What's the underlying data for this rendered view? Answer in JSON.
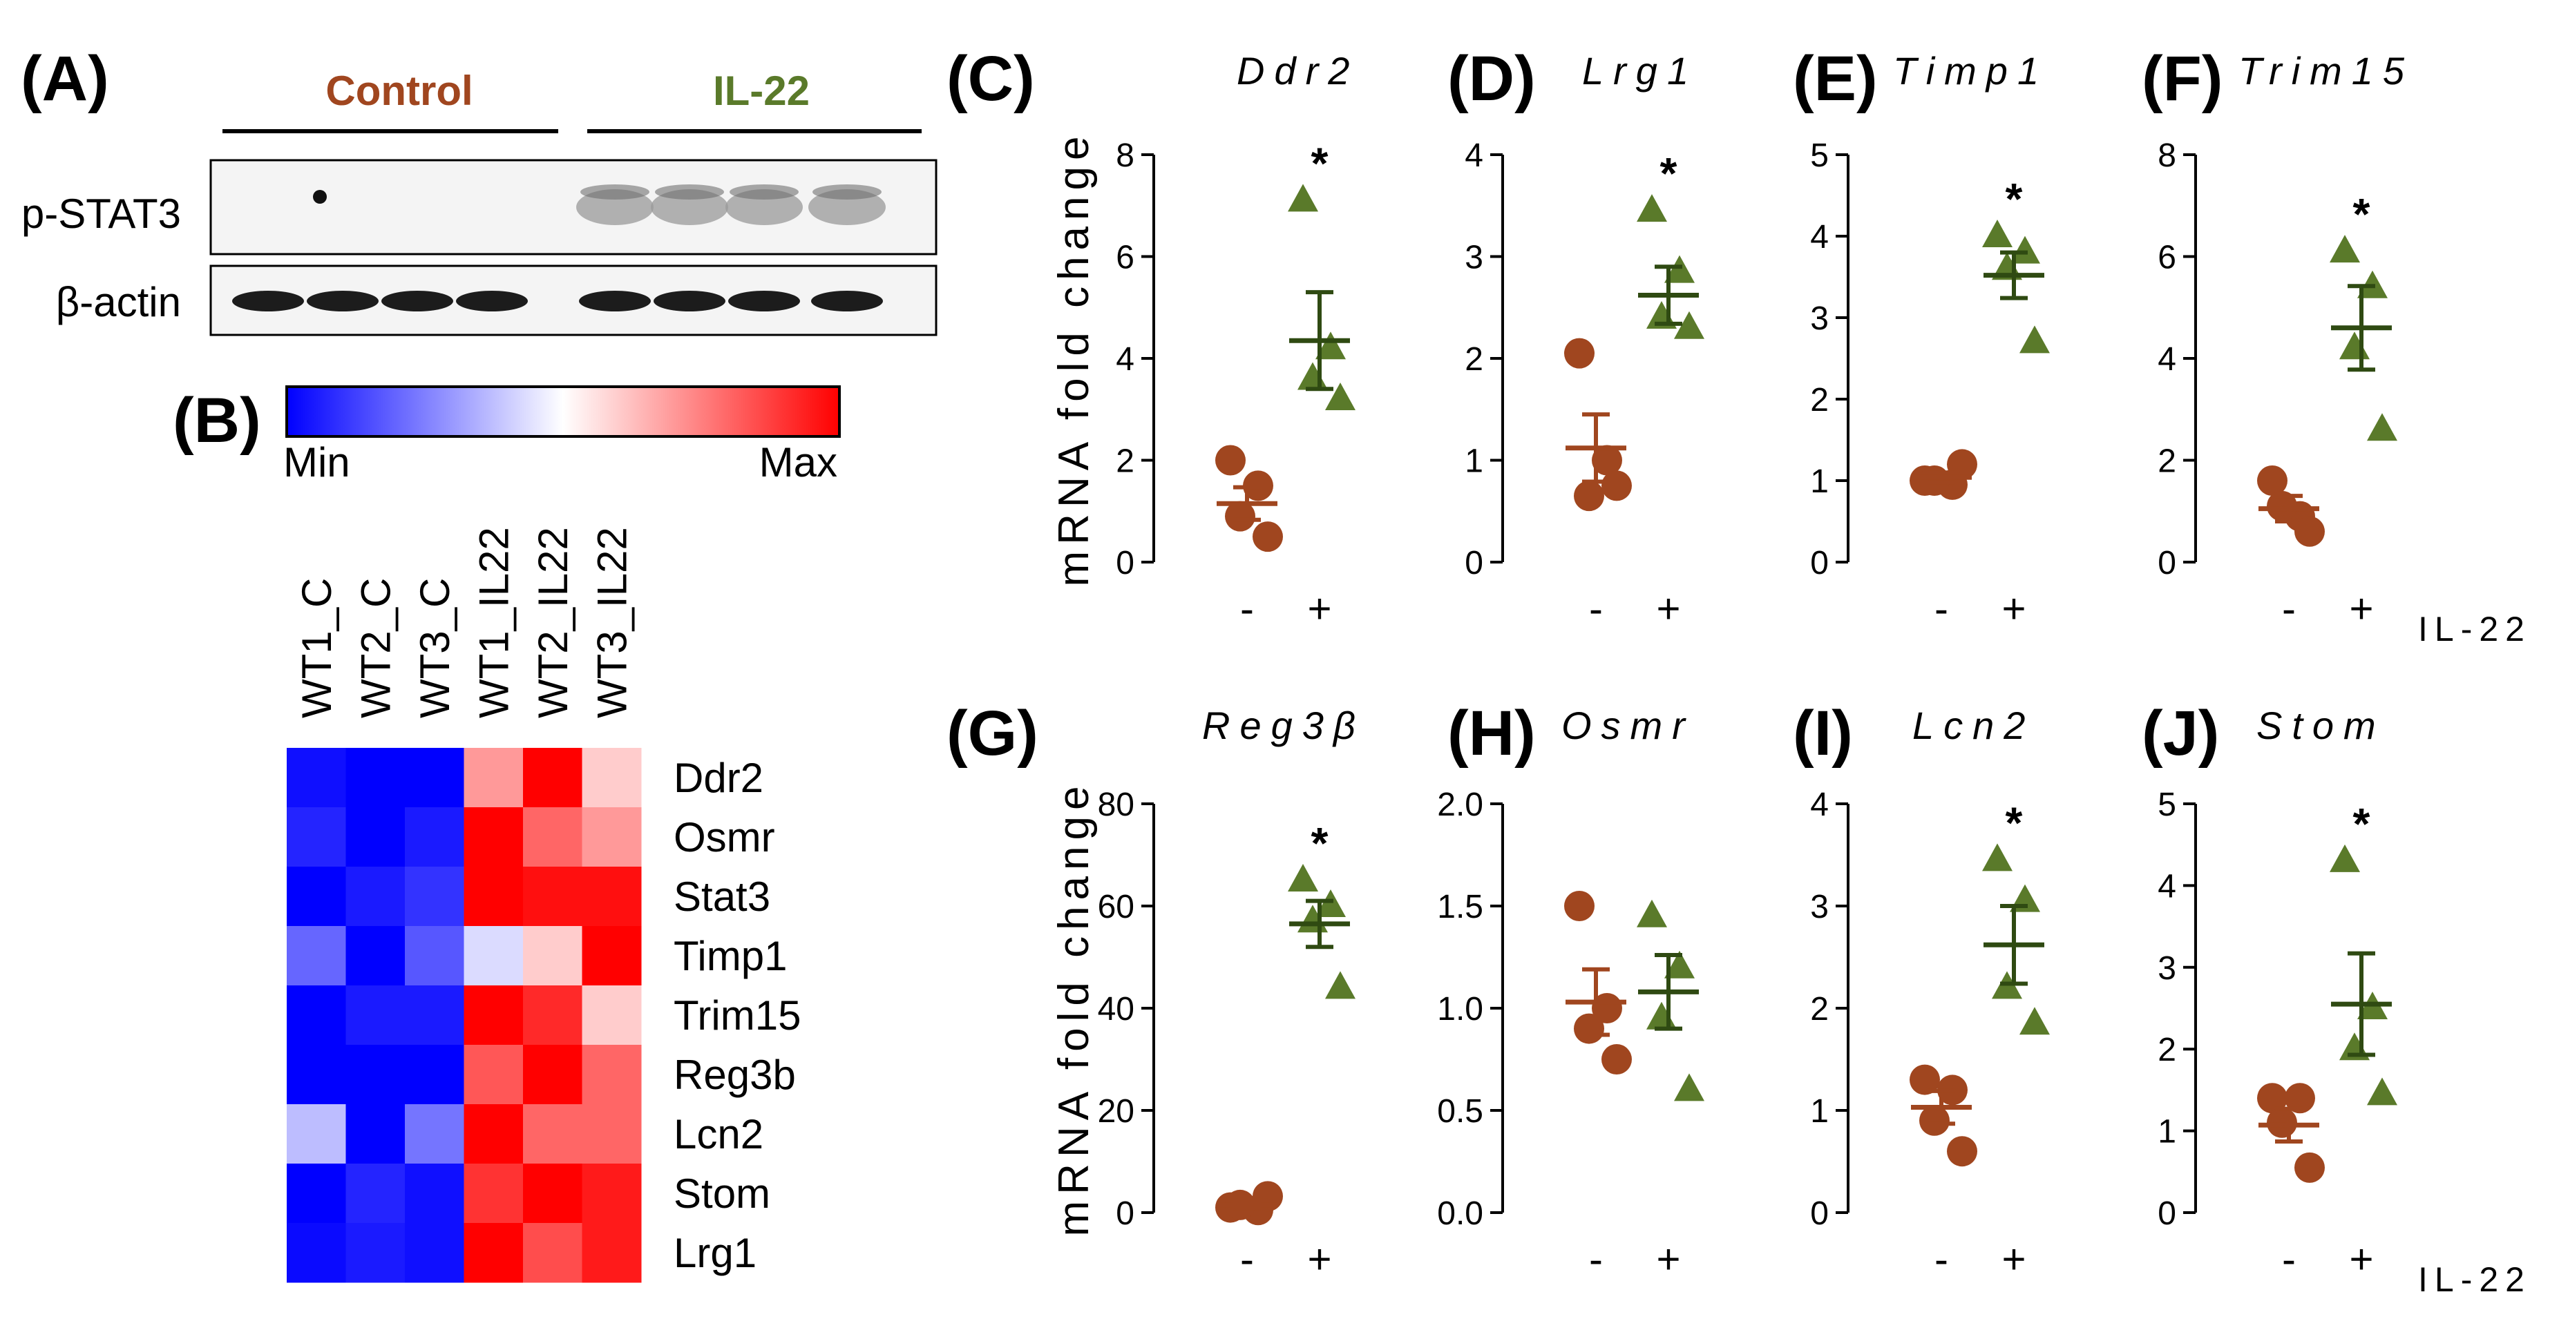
{
  "figure": {
    "label_a": "(A)",
    "label_b": "(B)",
    "western": {
      "groups": [
        "Control",
        "IL-22"
      ],
      "group_colors": [
        "#a0461f",
        "#5a7a2a"
      ],
      "rows": [
        "p-STAT3",
        "β-actin"
      ]
    },
    "heatmap": {
      "legend_min": "Min",
      "legend_max": "Max",
      "colormap": [
        "#0000ff",
        "#ffffff",
        "#ff0000"
      ],
      "columns": [
        "WT1_C",
        "WT2_C",
        "WT3_C",
        "WT1_IL22",
        "WT2_IL22",
        "WT3_IL22"
      ],
      "rows": [
        "Ddr2",
        "Osmr",
        "Stat3",
        "Timp1",
        "Trim15",
        "Reg3b",
        "Lcn2",
        "Stom",
        "Lrg1"
      ],
      "values": [
        [
          0.03,
          0.0,
          0.0,
          0.7,
          1.0,
          0.6
        ],
        [
          0.07,
          0.0,
          0.05,
          1.0,
          0.8,
          0.7
        ],
        [
          0.0,
          0.05,
          0.1,
          1.0,
          0.97,
          0.97
        ],
        [
          0.2,
          0.0,
          0.17,
          0.43,
          0.6,
          1.0
        ],
        [
          0.0,
          0.05,
          0.05,
          1.0,
          0.92,
          0.6
        ],
        [
          0.0,
          0.0,
          0.0,
          0.83,
          1.0,
          0.8
        ],
        [
          0.37,
          0.0,
          0.23,
          1.0,
          0.8,
          0.8
        ],
        [
          0.0,
          0.07,
          0.03,
          0.9,
          1.0,
          0.95
        ],
        [
          0.02,
          0.05,
          0.03,
          1.0,
          0.85,
          0.95
        ]
      ]
    },
    "colors": {
      "control": "#a0461f",
      "il22": "#5a7a2a",
      "il22_line": "#2f4a12"
    },
    "il22_axis_label": "IL-22",
    "significance_mark": "*"
  },
  "chart_data": [
    {
      "type": "scatter",
      "panel": "(C)",
      "title": "Ddr2",
      "ylabel": "mRNA fold change",
      "xlabel": "",
      "categories": [
        "-",
        "+"
      ],
      "ylim": [
        0,
        8
      ],
      "yticks": [
        "0",
        "2",
        "4",
        "6",
        "8"
      ],
      "significant": true,
      "series": [
        {
          "name": "Control",
          "values": [
            2.0,
            1.5,
            0.9,
            0.5
          ],
          "mean": 1.15,
          "sem": 0.32
        },
        {
          "name": "IL-22",
          "values": [
            7.1,
            4.2,
            3.6,
            3.2
          ],
          "mean": 4.35,
          "sem": 0.95
        }
      ]
    },
    {
      "type": "scatter",
      "panel": "(D)",
      "title": "Lrg1",
      "ylabel": "",
      "xlabel": "",
      "categories": [
        "-",
        "+"
      ],
      "ylim": [
        0,
        4
      ],
      "yticks": [
        "0",
        "1",
        "2",
        "3",
        "4"
      ],
      "significant": true,
      "series": [
        {
          "name": "Control",
          "values": [
            2.05,
            1.0,
            0.65,
            0.75
          ],
          "mean": 1.12,
          "sem": 0.33
        },
        {
          "name": "IL-22",
          "values": [
            3.45,
            2.85,
            2.4,
            2.3
          ],
          "mean": 2.62,
          "sem": 0.28
        }
      ]
    },
    {
      "type": "scatter",
      "panel": "(E)",
      "title": "Timp1",
      "ylabel": "",
      "xlabel": "",
      "categories": [
        "-",
        "+"
      ],
      "ylim": [
        0,
        5
      ],
      "yticks": [
        "0",
        "1",
        "2",
        "3",
        "4",
        "5"
      ],
      "significant": true,
      "series": [
        {
          "name": "Control",
          "values": [
            1.0,
            0.95,
            1.0,
            1.2
          ],
          "mean": 1.04,
          "sem": 0.06
        },
        {
          "name": "IL-22",
          "values": [
            4.0,
            3.8,
            3.6,
            2.7
          ],
          "mean": 3.52,
          "sem": 0.28
        }
      ]
    },
    {
      "type": "scatter",
      "panel": "(F)",
      "title": "Trim15",
      "ylabel": "",
      "xlabel": "",
      "categories": [
        "-",
        "+"
      ],
      "ylim": [
        0,
        8
      ],
      "yticks": [
        "0",
        "2",
        "4",
        "6",
        "8"
      ],
      "significant": true,
      "series": [
        {
          "name": "Control",
          "values": [
            1.6,
            0.9,
            1.1,
            0.6
          ],
          "mean": 1.05,
          "sem": 0.25
        },
        {
          "name": "IL-22",
          "values": [
            6.1,
            5.4,
            4.2,
            2.6
          ],
          "mean": 4.6,
          "sem": 0.82
        }
      ]
    },
    {
      "type": "scatter",
      "panel": "(G)",
      "title": "Reg3β",
      "ylabel": "mRNA fold change",
      "xlabel": "",
      "categories": [
        "-",
        "+"
      ],
      "ylim": [
        0,
        80
      ],
      "yticks": [
        "0",
        "20",
        "40",
        "60",
        "80"
      ],
      "significant": true,
      "series": [
        {
          "name": "Control",
          "values": [
            1.0,
            0.5,
            1.5,
            3.2
          ],
          "mean": 1.5,
          "sem": 0.6
        },
        {
          "name": "IL-22",
          "values": [
            65,
            60,
            57,
            44
          ],
          "mean": 56.5,
          "sem": 4.5
        }
      ]
    },
    {
      "type": "scatter",
      "panel": "(H)",
      "title": "Osmr",
      "ylabel": "",
      "xlabel": "",
      "categories": [
        "-",
        "+"
      ],
      "ylim": [
        0,
        2.0
      ],
      "yticks": [
        "0.0",
        "0.5",
        "1.0",
        "1.5",
        "2.0"
      ],
      "significant": false,
      "series": [
        {
          "name": "Control",
          "values": [
            1.5,
            1.0,
            0.9,
            0.75
          ],
          "mean": 1.03,
          "sem": 0.16
        },
        {
          "name": "IL-22",
          "values": [
            1.45,
            1.2,
            0.95,
            0.6
          ],
          "mean": 1.08,
          "sem": 0.18
        }
      ]
    },
    {
      "type": "scatter",
      "panel": "(I)",
      "title": "Lcn2",
      "ylabel": "",
      "xlabel": "",
      "categories": [
        "-",
        "+"
      ],
      "ylim": [
        0,
        4
      ],
      "yticks": [
        "0",
        "1",
        "2",
        "3",
        "4"
      ],
      "significant": true,
      "series": [
        {
          "name": "Control",
          "values": [
            1.3,
            1.2,
            0.9,
            0.6
          ],
          "mean": 1.03,
          "sem": 0.16
        },
        {
          "name": "IL-22",
          "values": [
            3.45,
            3.05,
            2.2,
            1.85
          ],
          "mean": 2.62,
          "sem": 0.38
        }
      ]
    },
    {
      "type": "scatter",
      "panel": "(J)",
      "title": "Stom",
      "ylabel": "",
      "xlabel": "",
      "categories": [
        "-",
        "+"
      ],
      "ylim": [
        0,
        5
      ],
      "yticks": [
        "0",
        "1",
        "2",
        "3",
        "4",
        "5"
      ],
      "significant": true,
      "series": [
        {
          "name": "Control",
          "values": [
            1.4,
            1.4,
            1.1,
            0.55
          ],
          "mean": 1.07,
          "sem": 0.2
        },
        {
          "name": "IL-22",
          "values": [
            4.3,
            2.5,
            2.0,
            1.45
          ],
          "mean": 2.55,
          "sem": 0.62
        }
      ]
    }
  ]
}
